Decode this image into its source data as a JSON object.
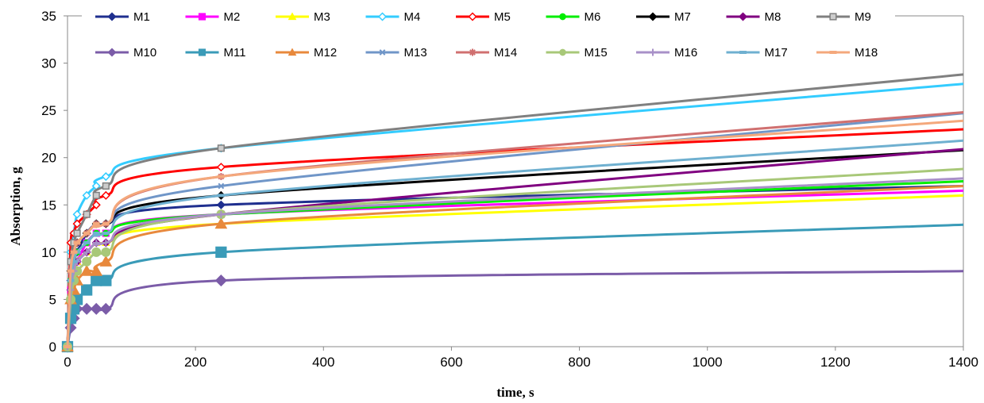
{
  "chart_data": {
    "type": "line",
    "xlabel": "time, s",
    "ylabel": "Absorption, g",
    "xlim": [
      0,
      1400
    ],
    "ylim": [
      0,
      35
    ],
    "xticks": [
      0,
      200,
      400,
      600,
      800,
      1000,
      1200,
      1400
    ],
    "yticks": [
      0,
      5,
      10,
      15,
      20,
      25,
      30,
      35
    ],
    "grid": false,
    "legend_position": "top",
    "x": [
      0,
      5,
      10,
      15,
      30,
      45,
      60,
      240,
      1400
    ],
    "series": [
      {
        "name": "M1",
        "color": "#1F2F8F",
        "marker": "diamond",
        "values": [
          0,
          7,
          9,
          10,
          12,
          13,
          13,
          15,
          17
        ]
      },
      {
        "name": "M2",
        "color": "#FF00FF",
        "marker": "square",
        "values": [
          0,
          6,
          8,
          9,
          11,
          12,
          12,
          14,
          16.5
        ]
      },
      {
        "name": "M3",
        "color": "#FFFF00",
        "marker": "triangle",
        "values": [
          0,
          5,
          7,
          9,
          10,
          11,
          11,
          13,
          16
        ]
      },
      {
        "name": "M4",
        "color": "#33CCFF",
        "marker": "diamond-open",
        "values": [
          0,
          10,
          12,
          14,
          16,
          17,
          18,
          21,
          27.8
        ]
      },
      {
        "name": "M5",
        "color": "#FF0000",
        "marker": "diamond-open",
        "values": [
          0,
          11,
          12,
          13,
          14,
          15,
          16,
          19,
          23
        ]
      },
      {
        "name": "M6",
        "color": "#00EE00",
        "marker": "circle",
        "values": [
          0,
          7,
          9,
          10,
          11,
          12,
          12,
          14,
          17.5
        ]
      },
      {
        "name": "M7",
        "color": "#000000",
        "marker": "diamond",
        "values": [
          0,
          8,
          10,
          11,
          12,
          13,
          13,
          16,
          20.8
        ]
      },
      {
        "name": "M8",
        "color": "#800080",
        "marker": "diamond",
        "values": [
          0,
          6,
          8,
          9,
          10,
          11,
          11,
          14,
          20.9
        ]
      },
      {
        "name": "M9",
        "color": "#808080",
        "marker": "square-open",
        "values": [
          0,
          9,
          11,
          12,
          14,
          16,
          17,
          21,
          28.8
        ]
      },
      {
        "name": "M10",
        "color": "#7B5CA8",
        "marker": "diamond",
        "values": [
          0,
          2,
          3,
          4,
          4,
          4,
          4,
          7,
          8
        ]
      },
      {
        "name": "M11",
        "color": "#3A9BB8",
        "marker": "square",
        "values": [
          0,
          3,
          4,
          5,
          6,
          7,
          7,
          10,
          12.9
        ]
      },
      {
        "name": "M12",
        "color": "#E8893C",
        "marker": "triangle",
        "values": [
          0,
          5,
          6,
          7,
          8,
          8,
          9,
          13,
          17
        ]
      },
      {
        "name": "M13",
        "color": "#7096C8",
        "marker": "x",
        "values": [
          0,
          8,
          10,
          11,
          12,
          13,
          13,
          17,
          24.7
        ]
      },
      {
        "name": "M14",
        "color": "#D07070",
        "marker": "star",
        "values": [
          0,
          8,
          10,
          11,
          12,
          13,
          13,
          18,
          24.8
        ]
      },
      {
        "name": "M15",
        "color": "#A8C878",
        "marker": "circle",
        "values": [
          0,
          5,
          7,
          8,
          9,
          10,
          10,
          14,
          18.8
        ]
      },
      {
        "name": "M16",
        "color": "#A890C8",
        "marker": "plus",
        "values": [
          0,
          6,
          8,
          9,
          10,
          11,
          11,
          14,
          17.8
        ]
      },
      {
        "name": "M17",
        "color": "#6FB0D0",
        "marker": "dash",
        "values": [
          0,
          7,
          9,
          10,
          11,
          12,
          12,
          16,
          21.8
        ]
      },
      {
        "name": "M18",
        "color": "#F4A87C",
        "marker": "dash",
        "values": [
          0,
          8,
          10,
          11,
          12,
          13,
          13,
          18,
          23.9
        ]
      }
    ]
  }
}
